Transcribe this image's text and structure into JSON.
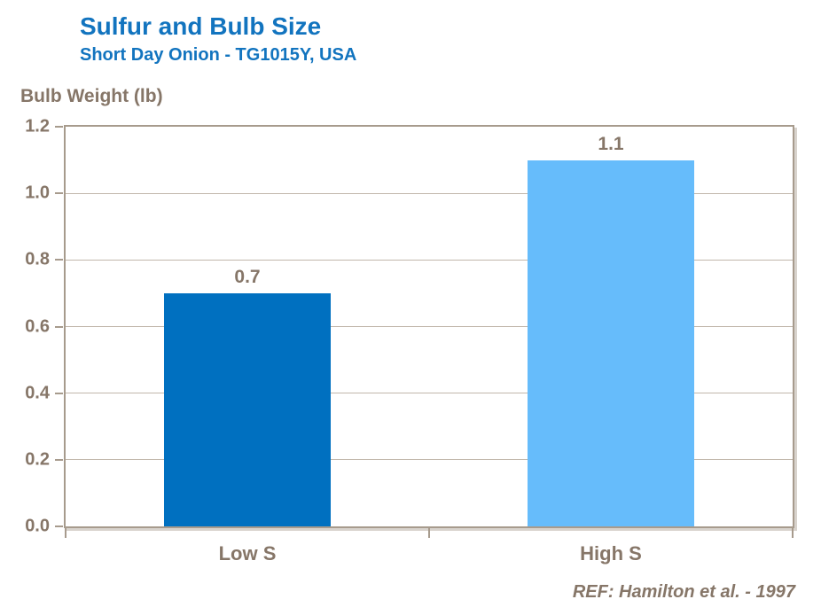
{
  "header": {
    "title": "Sulfur and Bulb Size",
    "subtitle": "Short Day Onion - TG1015Y, USA"
  },
  "chart_data": {
    "type": "bar",
    "title": "Sulfur and Bulb Size",
    "subtitle": "Short Day Onion - TG1015Y, USA",
    "ylabel": "Bulb Weight (lb)",
    "xlabel": "",
    "categories": [
      "Low S",
      "High S"
    ],
    "values": [
      0.7,
      1.1
    ],
    "value_labels": [
      "0.7",
      "1.1"
    ],
    "bar_colors": [
      "#0070C0",
      "#66BCFB"
    ],
    "ylim": [
      0,
      1.2
    ],
    "ytick_interval": 0.2,
    "yticks": [
      1.2,
      1.0,
      0.8,
      0.6,
      0.4,
      0.2,
      0.0
    ],
    "ytick_labels": [
      "1.2",
      "1.0",
      "0.8",
      "0.6",
      "0.4",
      "0.2",
      "0.0"
    ],
    "grid": true,
    "legend": false
  },
  "footer": {
    "reference": "REF: Hamilton et al. - 1997"
  },
  "colors": {
    "title_blue": "#1274BF",
    "axis_text": "#867668",
    "frame_border": "#A79B8D",
    "gridline": "#C1B7AB",
    "bar_low_s": "#0070C0",
    "bar_high_s": "#66BCFB",
    "background": "#FFFFFF"
  }
}
